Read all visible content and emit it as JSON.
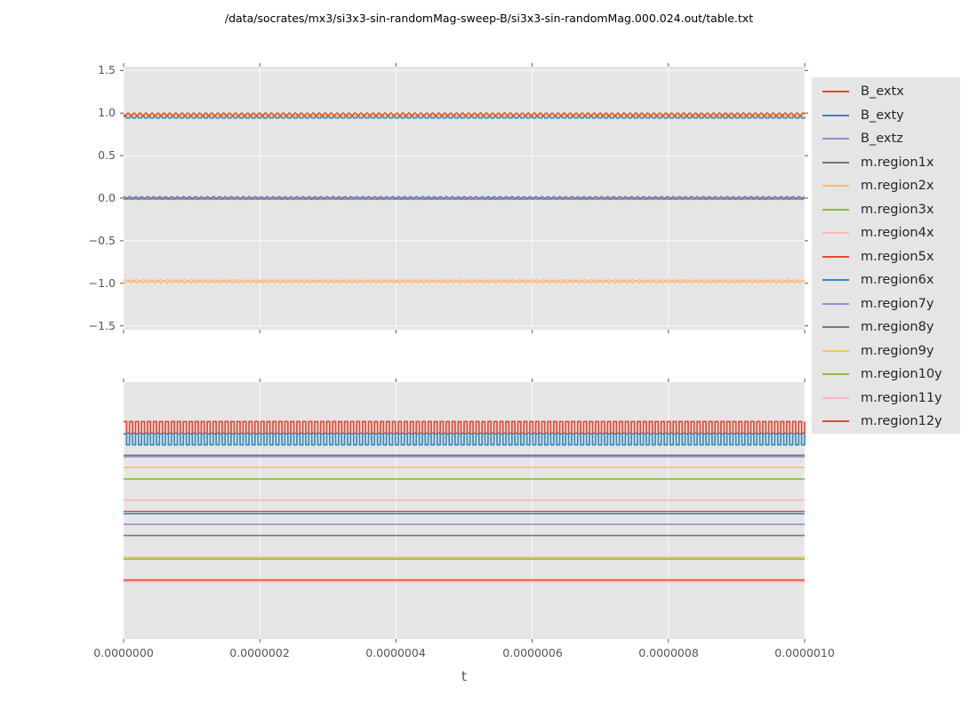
{
  "title": "/data/socrates/mx3/si3x3-sin-randomMag-sweep-B/si3x3-sin-randomMag.000.024.out/table.txt",
  "figure": {
    "background": "#ffffff",
    "axes_background": "#e5e5e5",
    "grid_color": "#f7f7f7",
    "tick_color": "#555555",
    "text_color": "#555555",
    "title_color": "#000000"
  },
  "palette": {
    "red": "#E24A33",
    "blue": "#348ABD",
    "purple": "#988ED5",
    "gray": "#777777",
    "orange": "#FBC15E",
    "green": "#8EBA42",
    "pink": "#FFB5B8"
  },
  "legend": {
    "items": [
      {
        "label": "B_extx",
        "color": "#E24A33"
      },
      {
        "label": "B_exty",
        "color": "#348ABD"
      },
      {
        "label": "B_extz",
        "color": "#988ED5"
      },
      {
        "label": "m.region1x",
        "color": "#777777"
      },
      {
        "label": "m.region2x",
        "color": "#FBC15E"
      },
      {
        "label": "m.region3x",
        "color": "#8EBA42"
      },
      {
        "label": "m.region4x",
        "color": "#FFB5B8"
      },
      {
        "label": "m.region5x",
        "color": "#E24A33"
      },
      {
        "label": "m.region6x",
        "color": "#348ABD"
      },
      {
        "label": "m.region7y",
        "color": "#988ED5"
      },
      {
        "label": "m.region8y",
        "color": "#777777"
      },
      {
        "label": "m.region9y",
        "color": "#FBC15E"
      },
      {
        "label": "m.region10y",
        "color": "#8EBA42"
      },
      {
        "label": "m.region11y",
        "color": "#FFB5B8"
      },
      {
        "label": "m.region12y",
        "color": "#E24A33"
      }
    ]
  },
  "chart_data": [
    {
      "type": "line",
      "subplot": "top",
      "xlabel": "t",
      "x_range": [
        0,
        1e-06
      ],
      "ylim": [
        -1.545,
        1.545
      ],
      "grid": true,
      "legend_position": "outside-right",
      "ytick_values": [
        1.5,
        1.0,
        0.5,
        0.0,
        -0.5,
        -1.0,
        -1.5
      ],
      "ytick_labels": [
        "1.5",
        "1.0",
        "0.5",
        "0.0",
        "−0.5",
        "−1.0",
        "−1.5"
      ],
      "oscillation_note": "all traces carry a fast oscillation, ~114 cycles over 0…1e-6 s",
      "series": [
        {
          "name": "m.region6x",
          "color": "#348ABD",
          "mean": 0.948,
          "amplitude": 0.008,
          "waveform": "square",
          "phase_deg": 0,
          "lw": 1.4
        },
        {
          "name": "B_extz",
          "color": "#988ED5",
          "mean": 0.0,
          "amplitude": 0.018,
          "waveform": "sine",
          "phase_deg": 0,
          "lw": 1.2
        },
        {
          "name": "m.region12y",
          "color": "#E24A33",
          "mean": -0.004,
          "amplitude": 0.012,
          "waveform": "sine",
          "phase_deg": 200,
          "lw": 1.1
        },
        {
          "name": "B_exty",
          "color": "#348ABD",
          "mean": 0.004,
          "amplitude": 0.018,
          "waveform": "sine",
          "phase_deg": 90,
          "lw": 1.2
        },
        {
          "name": "m.region4x",
          "color": "#FFB5B8",
          "mean": -0.972,
          "amplitude": 0.018,
          "waveform": "sine",
          "phase_deg": 0,
          "lw": 1.4
        },
        {
          "name": "m.region2x",
          "color": "#FBC15E",
          "mean": -0.982,
          "amplitude": 0.018,
          "waveform": "sine",
          "phase_deg": 180,
          "lw": 1.4
        },
        {
          "name": "m.region9y",
          "color": "#FBC15E",
          "mean": 0.973,
          "amplitude": 0.018,
          "waveform": "sine",
          "phase_deg": 0,
          "lw": 1.4
        },
        {
          "name": "B_extx",
          "color": "#E24A33",
          "mean": 0.985,
          "amplitude": 0.018,
          "waveform": "sine",
          "phase_deg": 180,
          "lw": 1.5
        }
      ]
    },
    {
      "type": "line",
      "subplot": "bottom",
      "xlabel": "t",
      "x_range": [
        0,
        1e-06
      ],
      "ylim_labeled": false,
      "grid": true,
      "xtick_labels": [
        "0.0000000",
        "0.0000002",
        "0.0000004",
        "0.0000006",
        "0.0000008",
        "0.0000010"
      ],
      "level_note": "no y tick labels shown; levels given as fraction of axes height from top",
      "series": [
        {
          "name": "B_extx",
          "color": "#E24A33",
          "level_frac": 0.176,
          "amplitude_frac": 0.0225,
          "waveform": "square",
          "lw": 1.7
        },
        {
          "name": "B_exty",
          "color": "#348ABD",
          "level_frac": 0.2225,
          "amplitude_frac": 0.0215,
          "waveform": "square",
          "lw": 1.7
        },
        {
          "name": "B_extz",
          "color": "#988ED5",
          "level_frac": 0.2905,
          "amplitude_frac": 0,
          "waveform": "flat",
          "lw": 1.6
        },
        {
          "name": "m.region1x",
          "color": "#777777",
          "level_frac": 0.285,
          "amplitude_frac": 0,
          "waveform": "flat",
          "lw": 1.6
        },
        {
          "name": "m.region2x",
          "color": "#FBC15E",
          "level_frac": 0.332,
          "amplitude_frac": 0,
          "waveform": "flat",
          "lw": 1.6
        },
        {
          "name": "m.region3x",
          "color": "#8EBA42",
          "level_frac": 0.377,
          "amplitude_frac": 0,
          "waveform": "flat",
          "lw": 1.6
        },
        {
          "name": "m.region4x",
          "color": "#FFB5B8",
          "level_frac": 0.46,
          "amplitude_frac": 0,
          "waveform": "flat",
          "lw": 1.6
        },
        {
          "name": "m.region5x",
          "color": "#E24A33",
          "level_frac": 0.5035,
          "amplitude_frac": 0,
          "waveform": "flat",
          "lw": 1.6
        },
        {
          "name": "m.region6x",
          "color": "#348ABD",
          "level_frac": 0.512,
          "amplitude_frac": 0,
          "waveform": "flat",
          "lw": 1.6
        },
        {
          "name": "m.region7y",
          "color": "#988ED5",
          "level_frac": 0.5535,
          "amplitude_frac": 0,
          "waveform": "flat",
          "lw": 1.6
        },
        {
          "name": "m.region8y",
          "color": "#777777",
          "level_frac": 0.597,
          "amplitude_frac": 0,
          "waveform": "flat",
          "lw": 1.6
        },
        {
          "name": "m.region9y",
          "color": "#FBC15E",
          "level_frac": 0.6815,
          "amplitude_frac": 0,
          "waveform": "flat",
          "lw": 1.6
        },
        {
          "name": "m.region10y",
          "color": "#8EBA42",
          "level_frac": 0.6885,
          "amplitude_frac": 0,
          "waveform": "flat",
          "lw": 1.6
        },
        {
          "name": "m.region11y",
          "color": "#FFB5B8",
          "level_frac": 0.7765,
          "amplitude_frac": 0,
          "waveform": "flat",
          "lw": 1.6
        },
        {
          "name": "m.region12y",
          "color": "#E24A33",
          "level_frac": 0.77,
          "amplitude_frac": 0,
          "waveform": "flat",
          "lw": 1.6
        }
      ]
    }
  ]
}
